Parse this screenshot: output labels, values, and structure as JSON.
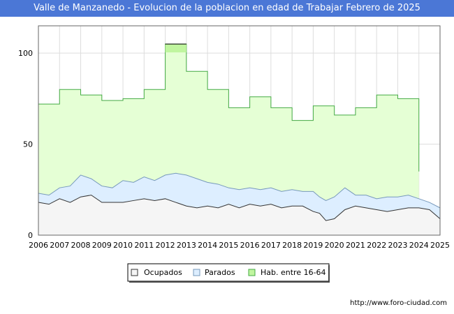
{
  "chart_data": {
    "type": "area",
    "title": "Valle de Manzanedo - Evolucion de la poblacion en edad de Trabajar Febrero de 2025",
    "xlabel": "",
    "ylabel": "",
    "ylim": [
      0,
      115
    ],
    "yticks": [
      0,
      50,
      100
    ],
    "x_ticks": [
      "2006",
      "2007",
      "2008",
      "2009",
      "2010",
      "2011",
      "2012",
      "2013",
      "2014",
      "2015",
      "2016",
      "2017",
      "2018",
      "2019",
      "2020",
      "2021",
      "2022",
      "2023",
      "2024",
      "2025"
    ],
    "x_range": [
      2006,
      2025
    ],
    "series": [
      {
        "name": "Ocupados",
        "color_fill": "#f5f5f5",
        "color_line": "#333333",
        "x": [
          2006.0,
          2006.5,
          2007.0,
          2007.5,
          2008.0,
          2008.5,
          2009.0,
          2009.5,
          2010.0,
          2010.5,
          2011.0,
          2011.5,
          2012.0,
          2012.5,
          2013.0,
          2013.5,
          2014.0,
          2014.5,
          2015.0,
          2015.5,
          2016.0,
          2016.5,
          2017.0,
          2017.5,
          2018.0,
          2018.5,
          2019.0,
          2019.3,
          2019.6,
          2020.0,
          2020.5,
          2021.0,
          2021.5,
          2022.0,
          2022.5,
          2023.0,
          2023.5,
          2024.0,
          2024.5,
          2025.0
        ],
        "values": [
          18,
          17,
          20,
          18,
          21,
          22,
          18,
          18,
          18,
          19,
          20,
          19,
          20,
          18,
          16,
          15,
          16,
          15,
          17,
          15,
          17,
          16,
          17,
          15,
          16,
          16,
          13,
          12,
          8,
          9,
          14,
          16,
          15,
          14,
          13,
          14,
          15,
          15,
          14,
          9
        ]
      },
      {
        "name": "Parados",
        "color_fill": "#ddeeff",
        "color_line": "#7799bb",
        "x": [
          2006.0,
          2006.5,
          2007.0,
          2007.5,
          2008.0,
          2008.5,
          2009.0,
          2009.5,
          2010.0,
          2010.5,
          2011.0,
          2011.5,
          2012.0,
          2012.5,
          2013.0,
          2013.5,
          2014.0,
          2014.5,
          2015.0,
          2015.5,
          2016.0,
          2016.5,
          2017.0,
          2017.5,
          2018.0,
          2018.5,
          2019.0,
          2019.3,
          2019.6,
          2020.0,
          2020.5,
          2021.0,
          2021.5,
          2022.0,
          2022.5,
          2023.0,
          2023.5,
          2024.0,
          2024.5,
          2025.0
        ],
        "values": [
          23,
          22,
          26,
          27,
          33,
          31,
          27,
          26,
          30,
          29,
          32,
          30,
          33,
          34,
          33,
          31,
          29,
          28,
          26,
          25,
          26,
          25,
          26,
          24,
          25,
          24,
          24,
          21,
          19,
          21,
          26,
          22,
          22,
          20,
          21,
          21,
          22,
          20,
          18,
          15
        ]
      },
      {
        "name": "Hab. entre 16-64",
        "color_fill": "#e5ffd5",
        "color_line": "#44aa44",
        "highlight_color": "#c0f59f",
        "step_years": [
          2006,
          2007,
          2008,
          2009,
          2010,
          2011,
          2012,
          2013,
          2014,
          2015,
          2016,
          2017,
          2018,
          2019,
          2020,
          2021,
          2022,
          2023
        ],
        "values": [
          72,
          80,
          77,
          74,
          75,
          80,
          105,
          90,
          80,
          70,
          76,
          70,
          63,
          71,
          66,
          70,
          77,
          75
        ],
        "end_x": 2024.0,
        "end_value": 35
      }
    ],
    "legend_position": "bottom-center",
    "grid": true
  },
  "footer": {
    "url": "http://www.foro-ciudad.com"
  }
}
